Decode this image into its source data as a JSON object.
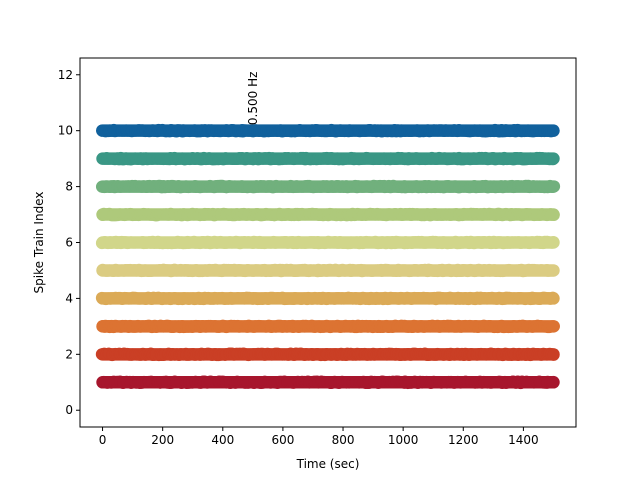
{
  "chart_data": {
    "type": "scatter",
    "title": "",
    "xlabel": "Time (sec)",
    "ylabel": "Spike Train Index",
    "xlim": [
      -75,
      1575
    ],
    "ylim": [
      -0.6,
      12.6
    ],
    "xticks": [
      0,
      200,
      400,
      600,
      800,
      1000,
      1200,
      1400
    ],
    "yticks": [
      0,
      2,
      4,
      6,
      8,
      10,
      12
    ],
    "grid": false,
    "spike_time_range": [
      0,
      1500
    ],
    "annotation": {
      "text": "0.500 Hz",
      "x": 500,
      "y": 10.2,
      "rotation": "vertical"
    },
    "series": [
      {
        "index": 1,
        "color": "#a7162d"
      },
      {
        "index": 2,
        "color": "#ca3f25"
      },
      {
        "index": 3,
        "color": "#dc7332"
      },
      {
        "index": 4,
        "color": "#dbaa57"
      },
      {
        "index": 5,
        "color": "#dbcc82"
      },
      {
        "index": 6,
        "color": "#d1d68a"
      },
      {
        "index": 7,
        "color": "#aec97b"
      },
      {
        "index": 8,
        "color": "#71b07d"
      },
      {
        "index": 9,
        "color": "#3a9785"
      },
      {
        "index": 10,
        "color": "#11619d"
      }
    ]
  }
}
